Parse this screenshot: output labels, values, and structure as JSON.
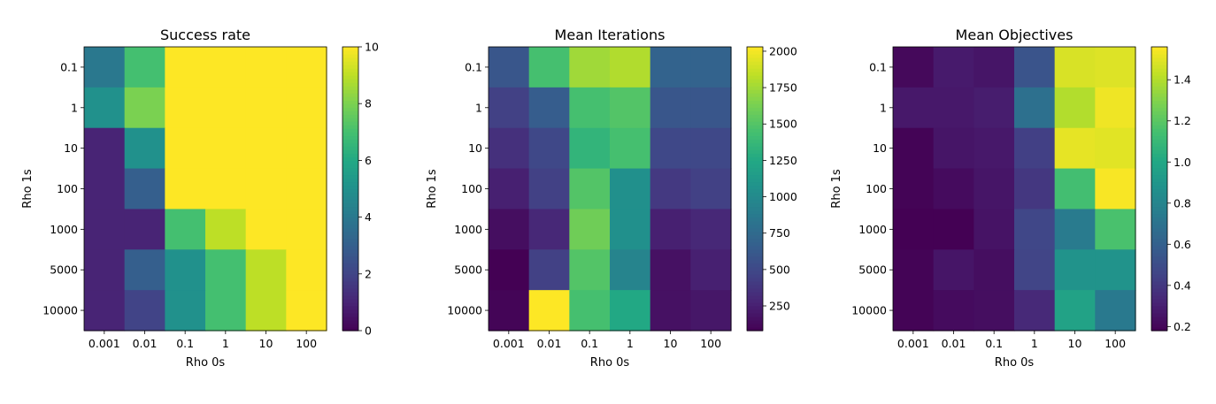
{
  "chart_data": [
    {
      "type": "heatmap",
      "title": "Success rate",
      "xlabel": "Rho 0s",
      "ylabel": "Rho 1s",
      "x": [
        "0.001",
        "0.01",
        "0.1",
        "1",
        "10",
        "100"
      ],
      "y": [
        "0.1",
        "1",
        "10",
        "100",
        "1000",
        "5000",
        "10000"
      ],
      "values": [
        [
          4,
          7,
          10,
          10,
          10,
          10
        ],
        [
          5,
          8,
          10,
          10,
          10,
          10
        ],
        [
          1,
          5,
          10,
          10,
          10,
          10
        ],
        [
          1,
          3,
          10,
          10,
          10,
          10
        ],
        [
          1,
          1,
          7,
          9,
          10,
          10
        ],
        [
          1,
          3,
          5,
          7,
          9,
          10
        ],
        [
          1,
          2,
          5,
          7,
          9,
          10
        ]
      ],
      "colorbar": {
        "min": 0,
        "max": 10,
        "ticks": [
          "0",
          "2",
          "4",
          "6",
          "8",
          "10"
        ]
      },
      "colormap": "viridis"
    },
    {
      "type": "heatmap",
      "title": "Mean Iterations",
      "xlabel": "Rho 0s",
      "ylabel": "Rho 1s",
      "x": [
        "0.001",
        "0.01",
        "0.1",
        "1",
        "10",
        "100"
      ],
      "y": [
        "0.1",
        "1",
        "10",
        "100",
        "1000",
        "5000",
        "10000"
      ],
      "values": [
        [
          600,
          1450,
          1750,
          1800,
          700,
          700
        ],
        [
          450,
          650,
          1450,
          1500,
          600,
          600
        ],
        [
          350,
          500,
          1350,
          1450,
          500,
          500
        ],
        [
          250,
          450,
          1500,
          1050,
          400,
          450
        ],
        [
          150,
          300,
          1600,
          1050,
          250,
          300
        ],
        [
          80,
          450,
          1500,
          950,
          170,
          250
        ],
        [
          100,
          2030,
          1450,
          1250,
          170,
          200
        ]
      ],
      "colorbar": {
        "min": 80,
        "max": 2030,
        "ticks": [
          "250",
          "500",
          "750",
          "1000",
          "1250",
          "1500",
          "1750",
          "2000"
        ]
      },
      "colormap": "viridis"
    },
    {
      "type": "heatmap",
      "title": "Mean Objectives",
      "xlabel": "Rho 0s",
      "ylabel": "Rho 1s",
      "x": [
        "0.001",
        "0.01",
        "0.1",
        "1",
        "10",
        "100"
      ],
      "y": [
        "0.1",
        "1",
        "10",
        "100",
        "1000",
        "5000",
        "10000"
      ],
      "values": [
        [
          0.21,
          0.28,
          0.26,
          0.54,
          1.48,
          1.49
        ],
        [
          0.27,
          0.27,
          0.29,
          0.69,
          1.4,
          1.53
        ],
        [
          0.19,
          0.26,
          0.27,
          0.44,
          1.51,
          1.5
        ],
        [
          0.19,
          0.22,
          0.26,
          0.4,
          1.14,
          1.55
        ],
        [
          0.18,
          0.18,
          0.25,
          0.47,
          0.75,
          1.16
        ],
        [
          0.19,
          0.26,
          0.23,
          0.46,
          0.88,
          0.88
        ],
        [
          0.19,
          0.22,
          0.23,
          0.34,
          0.97,
          0.74
        ]
      ],
      "colorbar": {
        "min": 0.18,
        "max": 1.56,
        "ticks": [
          "0.2",
          "0.4",
          "0.6",
          "0.8",
          "1.0",
          "1.2",
          "1.4"
        ]
      },
      "colormap": "viridis"
    }
  ]
}
